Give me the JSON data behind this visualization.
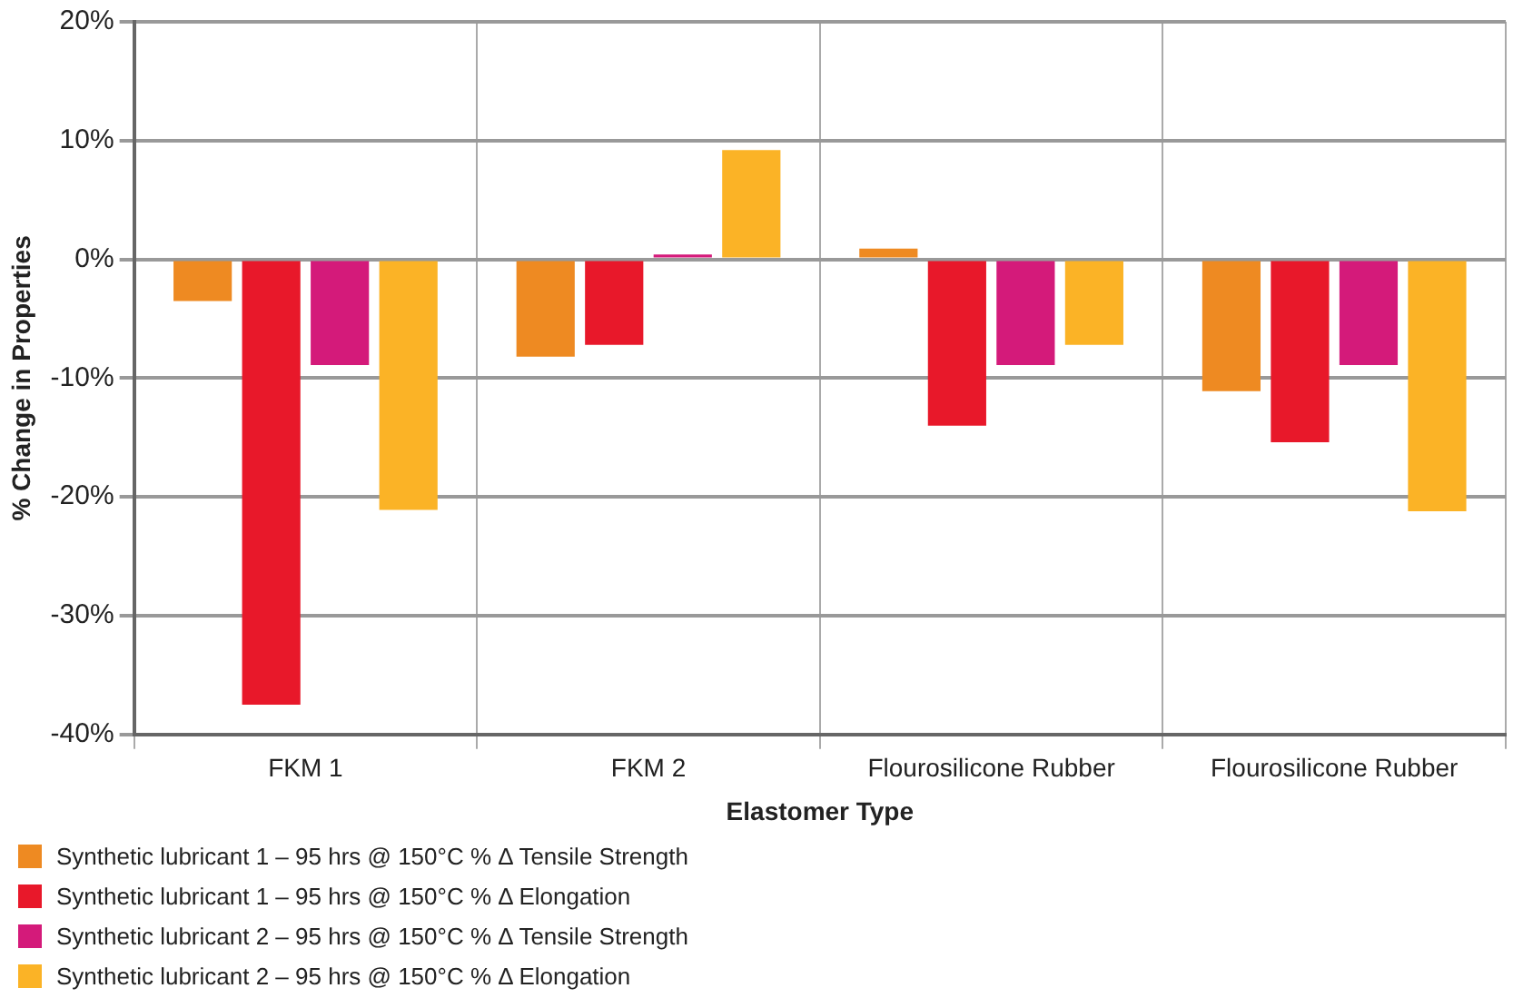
{
  "chart_data": {
    "type": "bar",
    "xlabel": "Elastomer Type",
    "ylabel": "% Change in Properties",
    "categories": [
      "FKM 1",
      "FKM 2",
      "Flourosilicone Rubber",
      "Flourosilicone Rubber"
    ],
    "series": [
      {
        "name": "Synthetic lubricant 1 – 95 hrs @ 150°C % Δ Tensile Strength",
        "color": "#ee8a22",
        "values": [
          -3.5,
          -8.2,
          0.9,
          -11.1
        ]
      },
      {
        "name": "Synthetic lubricant 1 – 95 hrs @ 150°C % Δ Elongation",
        "color": "#e8182a",
        "values": [
          -37.5,
          -7.2,
          -14,
          -15.4
        ]
      },
      {
        "name": "Synthetic lubricant 2 – 95 hrs @ 150°C % Δ Tensile Strength",
        "color": "#d41a7a",
        "values": [
          -8.9,
          0.4,
          -8.9,
          -8.9
        ]
      },
      {
        "name": "Synthetic lubricant 2 – 95 hrs @ 150°C % Δ Elongation",
        "color": "#fbb326",
        "values": [
          -21.1,
          9.2,
          -7.2,
          -21.2
        ]
      }
    ],
    "ylim": [
      -40,
      20
    ],
    "yticks": [
      {
        "value": -40,
        "label": "-40%"
      },
      {
        "value": -30,
        "label": "-30%"
      },
      {
        "value": -20,
        "label": "-20%"
      },
      {
        "value": -10,
        "label": "-10%"
      },
      {
        "value": 0,
        "label": "0%"
      },
      {
        "value": 10,
        "label": "10%"
      },
      {
        "value": 20,
        "label": "20%"
      }
    ],
    "grid": true,
    "legend": "bottom left"
  }
}
